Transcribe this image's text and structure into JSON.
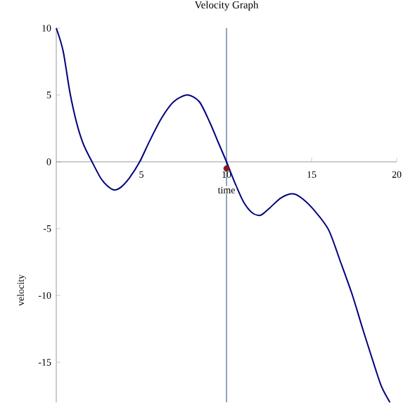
{
  "chart_data": {
    "type": "line",
    "title": "Velocity Graph",
    "xlabel": "time",
    "ylabel": "velocity",
    "xlim": [
      0,
      20
    ],
    "ylim": [
      -18,
      10
    ],
    "xticks": [
      5,
      10,
      15,
      20
    ],
    "yticks": [
      -15,
      -10,
      -5,
      0,
      5,
      10
    ],
    "series": [
      {
        "color": "#000080",
        "line_style": "solid",
        "x": [
          0,
          0.4,
          0.8,
          1.2,
          1.6,
          2.1,
          2.6,
          3.0,
          3.4,
          3.8,
          4.3,
          4.9,
          5.5,
          6.2,
          6.9,
          7.7,
          8.4,
          9.0,
          9.5,
          10,
          10.5,
          11,
          11.5,
          12,
          12.5,
          13.2,
          13.9,
          14.5,
          15.2,
          16,
          16.7,
          17.4,
          18.0,
          18.6,
          19.1,
          19.6
        ],
        "values": [
          10,
          8.3,
          5.2,
          2.9,
          1.3,
          0,
          -1.2,
          -1.8,
          -2.1,
          -1.9,
          -1.2,
          0,
          1.6,
          3.3,
          4.5,
          5.0,
          4.5,
          3.0,
          1.5,
          0,
          -1.6,
          -3.0,
          -3.8,
          -4.0,
          -3.5,
          -2.7,
          -2.4,
          -2.8,
          -3.7,
          -5.1,
          -7.5,
          -10,
          -12.5,
          -14.9,
          -16.8,
          -18
        ]
      },
      {
        "type": "scatter",
        "color": "#8b1a1a",
        "marker": "circle",
        "x": [
          10
        ],
        "values": [
          -0.5
        ]
      }
    ],
    "ref_lines": [
      {
        "axis": "x",
        "value": 10,
        "color": "#6f8faf",
        "line_style": "solid"
      }
    ]
  }
}
